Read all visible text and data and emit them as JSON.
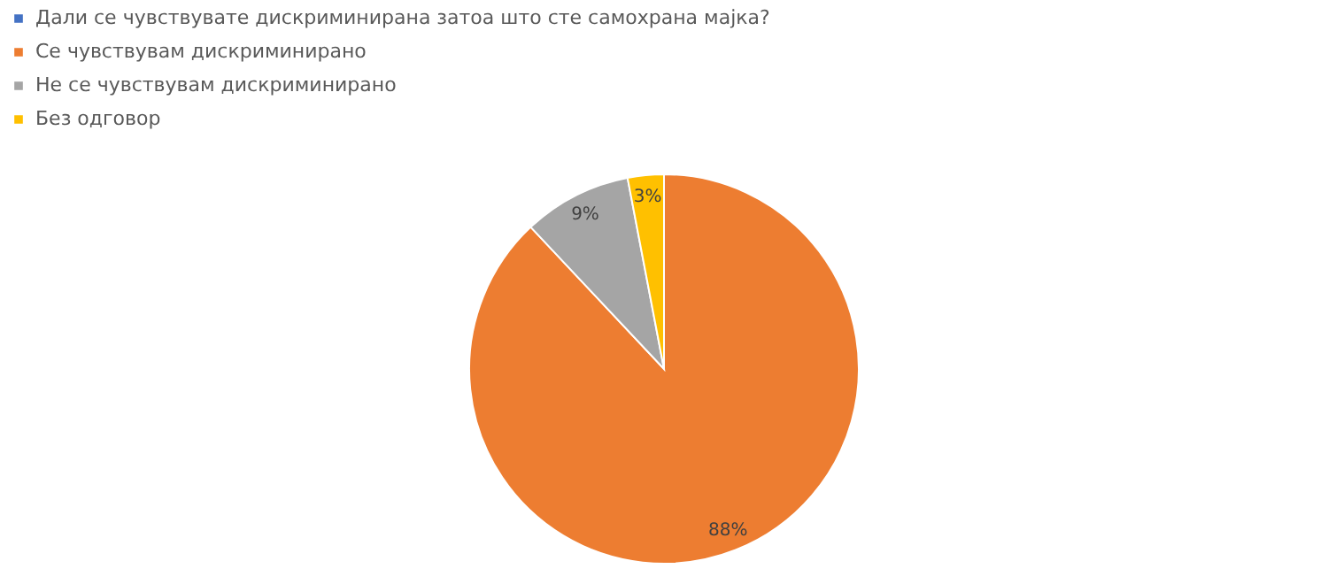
{
  "chart_data": {
    "type": "pie",
    "categories": [
      "Дали се чувствувате дискриминирана затоа што сте самохрана мајка?",
      "Се чувствувам дискриминирано",
      "Не се чувствувам дискриминирано",
      "Без одговор"
    ],
    "values": [
      0,
      88,
      9,
      3
    ],
    "colors": [
      "#4472c4",
      "#ed7d31",
      "#a5a5a5",
      "#ffc000"
    ],
    "value_labels": [
      null,
      "88%",
      "9%",
      "3%"
    ],
    "legend": "top"
  }
}
